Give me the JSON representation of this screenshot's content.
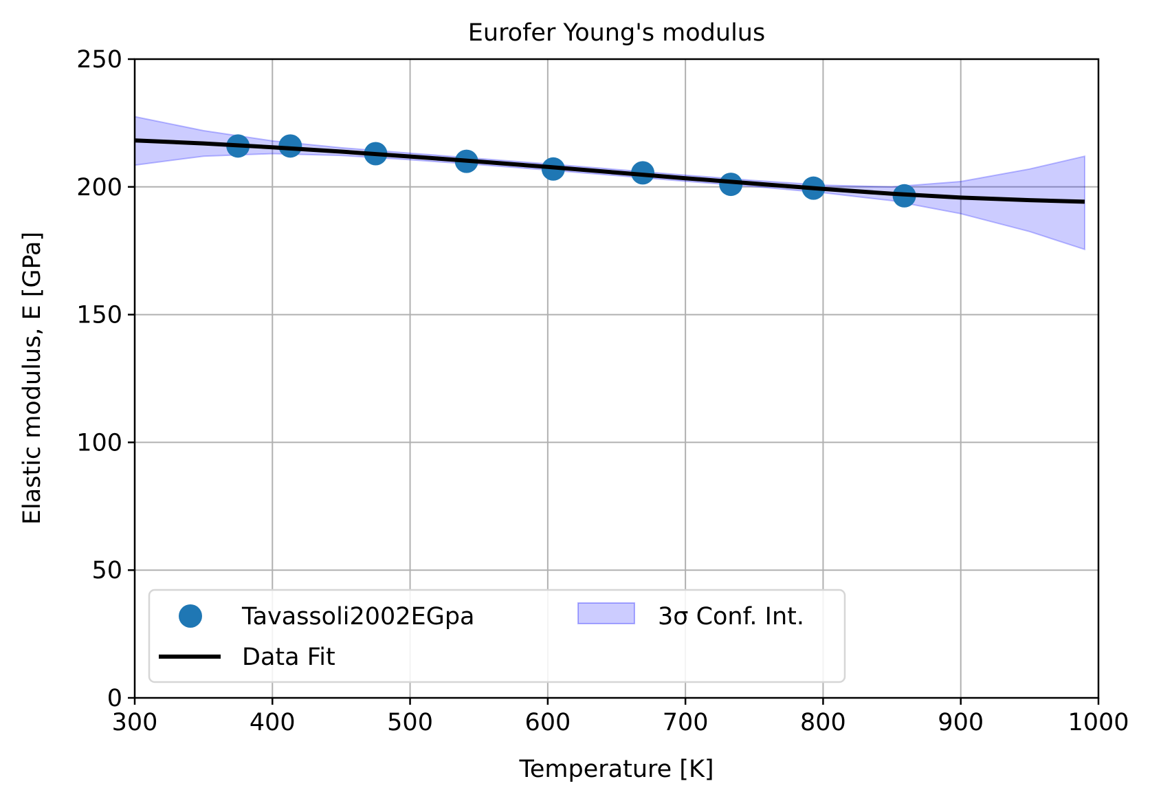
{
  "chart_data": {
    "type": "scatter",
    "title": "Eurofer Young's modulus",
    "xlabel": "Temperature [K]",
    "ylabel": "Elastic modulus, E [GPa]",
    "xlim": [
      300,
      1000
    ],
    "ylim": [
      0,
      250
    ],
    "xticks": [
      300,
      400,
      500,
      600,
      700,
      800,
      900,
      1000
    ],
    "yticks": [
      0,
      50,
      100,
      150,
      200,
      250
    ],
    "grid": true,
    "legend_placement": "lower-left",
    "colors": {
      "points": "#1f77b4",
      "fit": "#000000",
      "band_fill": "#0000ff",
      "grid": "#b0b0b0"
    },
    "series": [
      {
        "name": "Tavassoli2002EGpa",
        "kind": "scatter",
        "x": [
          375,
          413,
          475,
          541,
          604,
          669,
          733,
          793,
          859
        ],
        "y": [
          216,
          216,
          213,
          210,
          207,
          205.5,
          201,
          199.5,
          196.5
        ]
      },
      {
        "name": "Data Fit",
        "kind": "line",
        "x": [
          300,
          350,
          400,
          450,
          500,
          550,
          600,
          650,
          700,
          750,
          800,
          850,
          900,
          950,
          990
        ],
        "y": [
          218.2,
          217.0,
          215.5,
          213.8,
          211.9,
          209.9,
          207.8,
          205.6,
          203.4,
          201.3,
          199.2,
          197.3,
          195.8,
          194.8,
          194.2
        ]
      },
      {
        "name": "3σ Conf. Int.",
        "kind": "band",
        "x": [
          300,
          350,
          400,
          450,
          500,
          550,
          600,
          650,
          700,
          750,
          800,
          850,
          900,
          950,
          990
        ],
        "lower": [
          208.5,
          212.0,
          213.0,
          212.3,
          210.6,
          208.7,
          206.6,
          204.4,
          202.2,
          200.1,
          197.7,
          194.6,
          189.5,
          182.5,
          175.5
        ],
        "upper": [
          227.5,
          222.0,
          218.0,
          215.3,
          213.2,
          211.1,
          209.0,
          206.8,
          204.6,
          202.5,
          200.7,
          200.0,
          202.1,
          207.0,
          212.0
        ]
      }
    ]
  }
}
